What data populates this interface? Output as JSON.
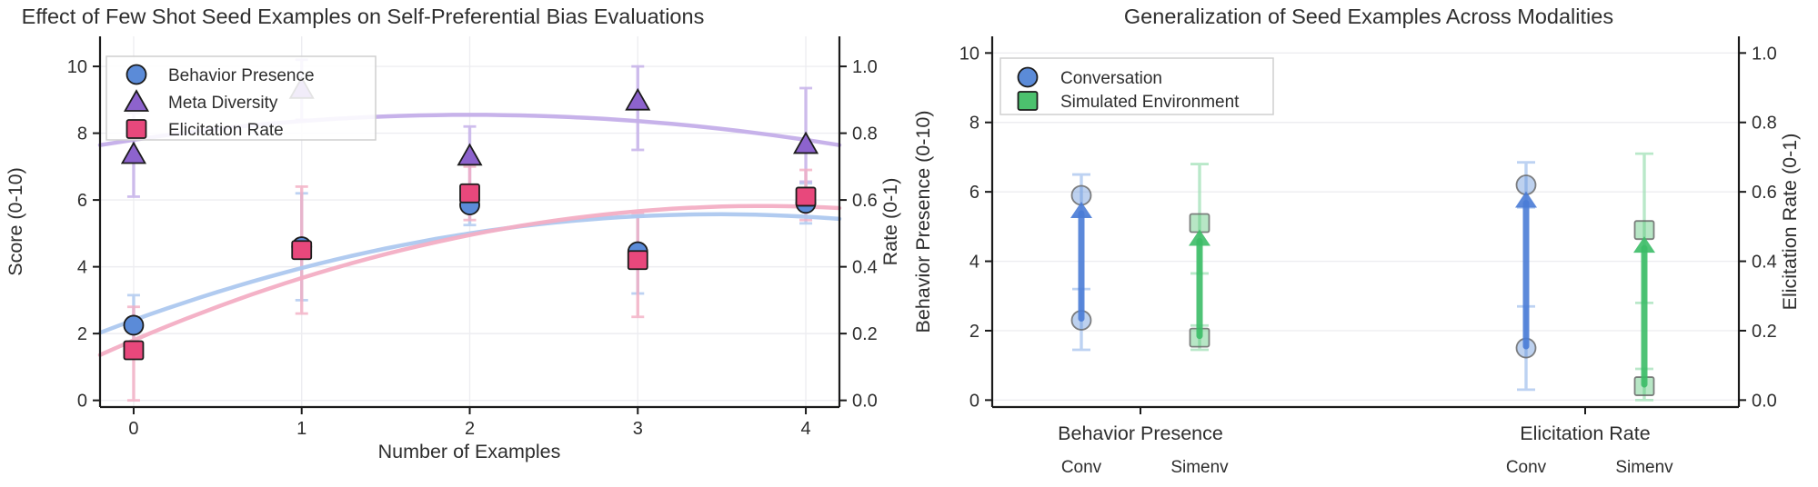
{
  "colors": {
    "blue": "#5b8bd8",
    "blue_light": "#adc8ef",
    "blue_arrow": "#4a7cd6",
    "purple": "#8d63cd",
    "purple_light": "#c4aee9",
    "pink": "#e8487c",
    "pink_light": "#f3aec4",
    "green": "#4cc16e",
    "green_light": "#a8e3bc",
    "green_arrow": "#3cbd67",
    "grid": "#ededf1",
    "spine": "#1b1b1b",
    "text": "#2e2e2e",
    "conv_label": "#6f94da",
    "simenv_label": "#56c17c"
  },
  "chart_data": [
    {
      "type": "scatter",
      "title": "Effect of Few Shot Seed Examples on Self-Preferential Bias Evaluations",
      "xlabel": "Number of Examples",
      "ylabel_left": "Score (0-10)",
      "ylabel_right": "Rate (0-1)",
      "xlim": [
        -0.2,
        4.2
      ],
      "ylim_left": [
        0,
        10
      ],
      "ylim_right": [
        0,
        1
      ],
      "grid": true,
      "legend_position": "upper left",
      "x_ticks": [
        "0",
        "1",
        "2",
        "3",
        "4"
      ],
      "y_ticks_left": [
        0,
        2,
        4,
        6,
        8,
        10
      ],
      "y_ticks_right": [
        "0.0",
        "0.2",
        "0.4",
        "0.6",
        "0.8",
        "1.0"
      ],
      "series": [
        {
          "name": "Behavior Presence",
          "marker": "circle",
          "axis": "left",
          "color": "#5b8bd8",
          "color_light": "#adc8ef",
          "x": [
            0,
            1,
            2,
            3,
            4
          ],
          "y": [
            2.25,
            4.6,
            5.85,
            4.45,
            5.9
          ],
          "err_low": [
            1.5,
            3.0,
            5.25,
            3.2,
            5.3
          ],
          "err_high": [
            3.15,
            6.2,
            6.45,
            5.5,
            6.5
          ],
          "trend_quadratic": [
            2.4,
            1.825,
            -0.2625
          ]
        },
        {
          "name": "Meta Diversity",
          "marker": "triangle",
          "axis": "left",
          "color": "#8d63cd",
          "color_light": "#c4aee9",
          "x": [
            0,
            1,
            2,
            3,
            4
          ],
          "y": [
            7.35,
            9.3,
            7.3,
            8.95,
            7.65
          ],
          "err_low": [
            6.1,
            8.4,
            6.4,
            7.5,
            6.55
          ],
          "err_high": [
            8.6,
            10.2,
            8.2,
            10.0,
            9.35
          ],
          "trend_quadratic": [
            7.8,
            0.75,
            -0.1875
          ]
        },
        {
          "name": "Elicitation Rate",
          "marker": "square",
          "axis": "right",
          "color": "#e8487c",
          "color_light": "#f3aec4",
          "x": [
            0,
            1,
            2,
            3,
            4
          ],
          "y_rate": [
            0.15,
            0.45,
            0.62,
            0.42,
            0.61
          ],
          "err_low": [
            0.0,
            0.26,
            0.54,
            0.25,
            0.54
          ],
          "err_high": [
            0.28,
            0.64,
            0.7,
            0.56,
            0.69
          ],
          "trend_quadratic": [
            1.8,
            2.15,
            -0.2875
          ]
        }
      ]
    },
    {
      "type": "dumbbell-arrow",
      "title": "Generalization of Seed Examples Across Modalities",
      "ylabel_left": "Behavior Presence (0-10)",
      "ylabel_right": "Elicitation Rate (0-1)",
      "ylim_left": [
        0,
        10
      ],
      "ylim_right": [
        0,
        1
      ],
      "grid": true,
      "y_ticks_left": [
        0,
        2,
        4,
        6,
        8,
        10
      ],
      "y_ticks_right": [
        "0.0",
        "0.2",
        "0.4",
        "0.6",
        "0.8",
        "1.0"
      ],
      "series": [
        {
          "name": "Conversation",
          "marker": "circle",
          "color": "#5b8bd8",
          "arrow_color": "#4a7cd6",
          "light": "#adc8ef"
        },
        {
          "name": "Simulated Environment",
          "marker": "square",
          "color": "#4cc16e",
          "arrow_color": "#3cbd67",
          "light": "#a8e3bc"
        }
      ],
      "groups": [
        {
          "label": "Behavior Presence",
          "sub_labels": [
            {
              "text": "Conv",
              "color": "#6f94da"
            },
            {
              "text": "Simenv",
              "color": "#56c17c"
            }
          ],
          "points": [
            {
              "series": "Conversation",
              "scale": "score",
              "start": 2.3,
              "end": 5.9,
              "start_err": [
                1.45,
                3.2
              ],
              "end_err": [
                5.3,
                6.5
              ]
            },
            {
              "series": "Simulated Environment",
              "scale": "score",
              "start": 1.8,
              "end": 5.1,
              "start_err": [
                1.45,
                2.15
              ],
              "end_err": [
                3.65,
                6.8
              ]
            }
          ]
        },
        {
          "label": "Elicitation Rate",
          "sub_labels": [
            {
              "text": "Conv",
              "color": "#6f94da"
            },
            {
              "text": "Simenv",
              "color": "#56c17c"
            }
          ],
          "points": [
            {
              "series": "Conversation",
              "scale": "rate",
              "start": 0.15,
              "end": 0.62,
              "start_err": [
                0.03,
                0.27
              ],
              "end_err": [
                0.555,
                0.685
              ]
            },
            {
              "series": "Simulated Environment",
              "scale": "rate",
              "start": 0.04,
              "end": 0.49,
              "start_err": [
                0.0,
                0.09
              ],
              "end_err": [
                0.28,
                0.71
              ]
            }
          ]
        }
      ]
    }
  ]
}
